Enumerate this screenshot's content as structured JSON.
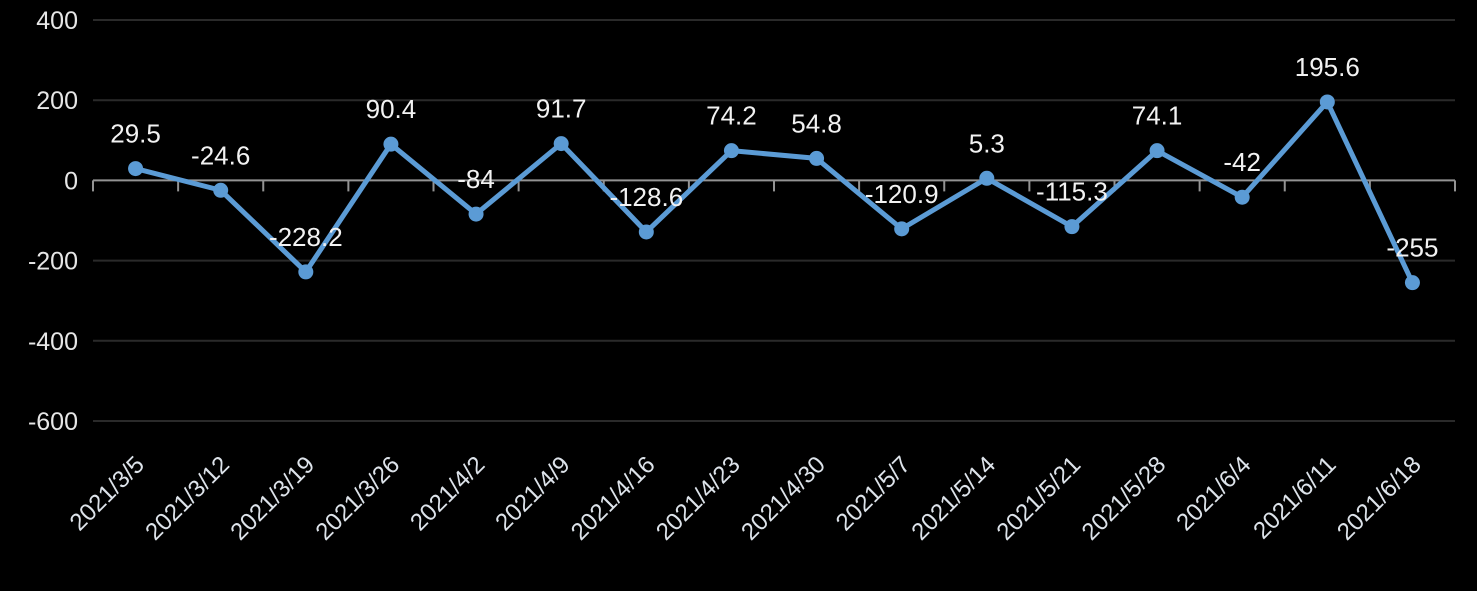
{
  "chart_data": {
    "type": "line",
    "title": "",
    "xlabel": "",
    "ylabel": "",
    "categories": [
      "2021/3/5",
      "2021/3/12",
      "2021/3/19",
      "2021/3/26",
      "2021/4/2",
      "2021/4/9",
      "2021/4/16",
      "2021/4/23",
      "2021/4/30",
      "2021/5/7",
      "2021/5/14",
      "2021/5/21",
      "2021/5/28",
      "2021/6/4",
      "2021/6/11",
      "2021/6/18"
    ],
    "values": [
      29.5,
      -24.6,
      -228.2,
      90.4,
      -84,
      91.7,
      -128.6,
      74.2,
      54.8,
      -120.9,
      5.3,
      -115.3,
      74.1,
      -42,
      195.6,
      -255
    ],
    "data_labels": [
      "29.5",
      "-24.6",
      "-228.2",
      "90.4",
      "-84",
      "91.7",
      "-128.6",
      "74.2",
      "54.8",
      "-120.9",
      "5.3",
      "-115.3",
      "74.1",
      "-42",
      "195.6",
      "-255"
    ],
    "y_ticks": [
      400,
      200,
      0,
      -200,
      -400,
      -600
    ],
    "ylim": [
      -600,
      400
    ],
    "grid": true,
    "legend_position": "none",
    "x_label_rotation_deg": -45,
    "colors": {
      "background": "#000000",
      "series": "#5B9BD5",
      "data_label": "#F2F2F2",
      "y_axis_label": "#E6E6E6",
      "x_axis_label": "#DDE3EA",
      "gridline": "#2A2A2A",
      "axis_line": "#939393"
    }
  }
}
